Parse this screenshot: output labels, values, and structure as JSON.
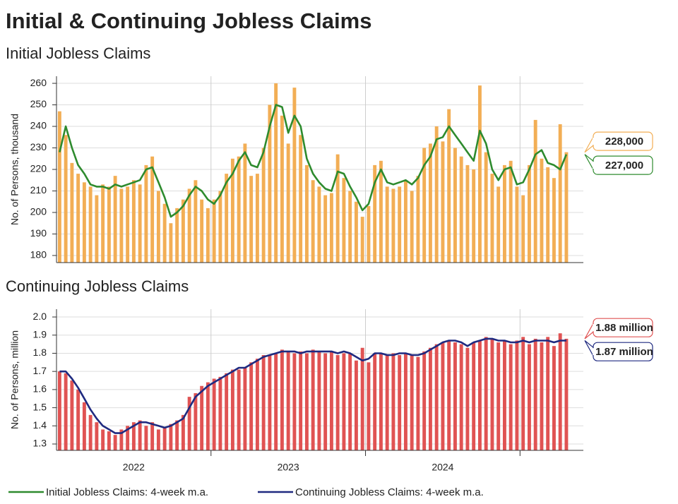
{
  "title": "Initial & Continuing Jobless Claims",
  "chart_data": [
    {
      "type": "bar",
      "title": "Initial Jobless Claims",
      "ylabel": "No. of Persons, thousand",
      "x": [
        2022.02,
        2022.06,
        2022.1,
        2022.14,
        2022.18,
        2022.22,
        2022.26,
        2022.3,
        2022.34,
        2022.38,
        2022.42,
        2022.46,
        2022.5,
        2022.54,
        2022.58,
        2022.62,
        2022.66,
        2022.7,
        2022.74,
        2022.78,
        2022.82,
        2022.86,
        2022.9,
        2022.94,
        2022.98,
        2023.02,
        2023.06,
        2023.1,
        2023.14,
        2023.18,
        2023.22,
        2023.26,
        2023.3,
        2023.34,
        2023.38,
        2023.42,
        2023.46,
        2023.5,
        2023.54,
        2023.58,
        2023.62,
        2023.66,
        2023.7,
        2023.74,
        2023.78,
        2023.82,
        2023.86,
        2023.9,
        2023.94,
        2023.98,
        2024.02,
        2024.06,
        2024.1,
        2024.14,
        2024.18,
        2024.22,
        2024.26,
        2024.3,
        2024.34,
        2024.38,
        2024.42,
        2024.46,
        2024.5,
        2024.54,
        2024.58,
        2024.62,
        2024.66,
        2024.7,
        2024.74,
        2024.78,
        2024.82,
        2024.86,
        2024.9,
        2024.94,
        2024.98,
        2025.02,
        2025.06,
        2025.1,
        2025.14,
        2025.18,
        2025.22,
        2025.26,
        2025.3
      ],
      "xlim": [
        2022,
        2025.41
      ],
      "xgrid_lines": [
        2023,
        2024,
        2025
      ],
      "ylim": [
        176.7,
        263.3
      ],
      "yticks": [
        180,
        190,
        200,
        210,
        220,
        230,
        240,
        250,
        260
      ],
      "grid": true,
      "series": [
        {
          "color": "#f2ae55",
          "end_label": "228,000",
          "values": [
            247,
            236,
            223,
            218,
            214,
            212,
            208,
            213,
            212,
            217,
            211,
            212,
            215,
            213,
            222,
            226,
            210,
            204,
            195,
            202,
            206,
            211,
            215,
            206,
            202,
            206,
            210,
            218,
            225,
            226,
            232,
            217,
            218,
            230,
            250,
            260,
            245,
            232,
            258,
            236,
            222,
            215,
            212,
            208,
            209,
            227,
            216,
            210,
            205,
            198,
            203,
            222,
            224,
            212,
            211,
            212,
            215,
            210,
            217,
            230,
            232,
            240,
            233,
            248,
            230,
            226,
            222,
            220,
            259,
            228,
            218,
            212,
            222,
            224,
            212,
            208,
            222,
            243,
            225,
            221,
            216,
            241,
            228
          ]
        },
        {
          "type": "line",
          "name": "Initial Jobless Claims: 4-week m.a.",
          "color": "#2e8b2e",
          "end_label": "227,000",
          "values": [
            228,
            240,
            230,
            222,
            218,
            213,
            212,
            212,
            211,
            213,
            212,
            213,
            214,
            215,
            220,
            221,
            214,
            207,
            198,
            200,
            203,
            208,
            212,
            210,
            206,
            204,
            208,
            214,
            218,
            224,
            228,
            222,
            221,
            228,
            240,
            250,
            249,
            237,
            245,
            240,
            225,
            218,
            214,
            211,
            210,
            219,
            218,
            212,
            207,
            201,
            204,
            214,
            220,
            214,
            213,
            214,
            215,
            213,
            216,
            222,
            226,
            234,
            235,
            240,
            236,
            232,
            228,
            224,
            238,
            232,
            220,
            215,
            220,
            221,
            213,
            214,
            220,
            227,
            229,
            223,
            222,
            220,
            227
          ]
        }
      ]
    },
    {
      "type": "bar",
      "title": "Continuing Jobless Claims",
      "ylabel": "No. of Persons, million",
      "x": [
        2022.02,
        2022.06,
        2022.1,
        2022.14,
        2022.18,
        2022.22,
        2022.26,
        2022.3,
        2022.34,
        2022.38,
        2022.42,
        2022.46,
        2022.5,
        2022.54,
        2022.58,
        2022.62,
        2022.66,
        2022.7,
        2022.74,
        2022.78,
        2022.82,
        2022.86,
        2022.9,
        2022.94,
        2022.98,
        2023.02,
        2023.06,
        2023.1,
        2023.14,
        2023.18,
        2023.22,
        2023.26,
        2023.3,
        2023.34,
        2023.38,
        2023.42,
        2023.46,
        2023.5,
        2023.54,
        2023.58,
        2023.62,
        2023.66,
        2023.7,
        2023.74,
        2023.78,
        2023.82,
        2023.86,
        2023.9,
        2023.94,
        2023.98,
        2024.02,
        2024.06,
        2024.1,
        2024.14,
        2024.18,
        2024.22,
        2024.26,
        2024.3,
        2024.34,
        2024.38,
        2024.42,
        2024.46,
        2024.5,
        2024.54,
        2024.58,
        2024.62,
        2024.66,
        2024.7,
        2024.74,
        2024.78,
        2024.82,
        2024.86,
        2024.9,
        2024.94,
        2024.98,
        2025.02,
        2025.06,
        2025.1,
        2025.14,
        2025.18,
        2025.22,
        2025.26,
        2025.3
      ],
      "xlim": [
        2022,
        2025.41
      ],
      "xgrid_lines": [
        2023,
        2024,
        2025
      ],
      "xticks": [
        {
          "value": 2022.5,
          "label": "2022"
        },
        {
          "value": 2023.5,
          "label": "2023"
        },
        {
          "value": 2024.5,
          "label": "2024"
        }
      ],
      "ylim": [
        1.265,
        2.043
      ],
      "yticks": [
        1.3,
        1.4,
        1.5,
        1.6,
        1.7,
        1.8,
        1.9,
        {
          "value": 2,
          "label": "2.0"
        }
      ],
      "grid": true,
      "series": [
        {
          "color": "#e05353",
          "end_label": "1.88 million",
          "values": [
            1.7,
            1.69,
            1.65,
            1.6,
            1.53,
            1.46,
            1.42,
            1.38,
            1.37,
            1.35,
            1.38,
            1.4,
            1.42,
            1.43,
            1.4,
            1.42,
            1.38,
            1.39,
            1.41,
            1.43,
            1.46,
            1.56,
            1.58,
            1.62,
            1.64,
            1.66,
            1.67,
            1.69,
            1.71,
            1.71,
            1.72,
            1.75,
            1.77,
            1.79,
            1.79,
            1.8,
            1.82,
            1.81,
            1.8,
            1.81,
            1.8,
            1.82,
            1.81,
            1.8,
            1.81,
            1.79,
            1.8,
            1.8,
            1.76,
            1.83,
            1.75,
            1.8,
            1.8,
            1.79,
            1.8,
            1.79,
            1.8,
            1.79,
            1.78,
            1.81,
            1.83,
            1.85,
            1.86,
            1.87,
            1.86,
            1.85,
            1.83,
            1.86,
            1.87,
            1.89,
            1.88,
            1.86,
            1.87,
            1.85,
            1.87,
            1.89,
            1.85,
            1.88,
            1.86,
            1.89,
            1.84,
            1.91,
            1.88
          ]
        },
        {
          "type": "line",
          "name": "Continuing Jobless Claims: 4-week m.a.",
          "color": "#1f2a80",
          "end_label": "1.87 million",
          "values": [
            1.7,
            1.7,
            1.66,
            1.61,
            1.55,
            1.49,
            1.44,
            1.4,
            1.38,
            1.36,
            1.36,
            1.38,
            1.4,
            1.42,
            1.42,
            1.41,
            1.4,
            1.39,
            1.4,
            1.42,
            1.44,
            1.5,
            1.56,
            1.59,
            1.62,
            1.64,
            1.66,
            1.68,
            1.7,
            1.72,
            1.72,
            1.74,
            1.76,
            1.78,
            1.79,
            1.8,
            1.81,
            1.81,
            1.81,
            1.8,
            1.81,
            1.81,
            1.81,
            1.81,
            1.81,
            1.8,
            1.81,
            1.8,
            1.78,
            1.76,
            1.77,
            1.8,
            1.8,
            1.79,
            1.79,
            1.8,
            1.8,
            1.79,
            1.79,
            1.8,
            1.82,
            1.84,
            1.86,
            1.87,
            1.87,
            1.86,
            1.84,
            1.86,
            1.87,
            1.88,
            1.88,
            1.87,
            1.87,
            1.86,
            1.86,
            1.87,
            1.86,
            1.87,
            1.87,
            1.87,
            1.86,
            1.87,
            1.87
          ]
        }
      ]
    }
  ]
}
